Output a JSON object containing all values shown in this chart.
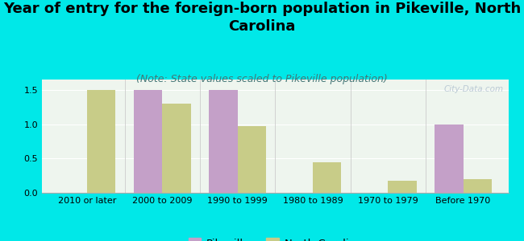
{
  "title": "Year of entry for the foreign-born population in Pikeville, North\nCarolina",
  "subtitle": "(Note: State values scaled to Pikeville population)",
  "categories": [
    "2010 or later",
    "2000 to 2009",
    "1990 to 1999",
    "1980 to 1989",
    "1970 to 1979",
    "Before 1970"
  ],
  "pikeville_values": [
    0,
    1.5,
    1.5,
    0,
    0,
    1.0
  ],
  "nc_values": [
    1.5,
    1.3,
    0.97,
    0.45,
    0.18,
    0.2
  ],
  "pikeville_color": "#c4a0c8",
  "nc_color": "#c8cc88",
  "background_color": "#00e8e8",
  "plot_bg_color": "#eef5ee",
  "ylim": [
    0,
    1.65
  ],
  "yticks": [
    0,
    0.5,
    1.0,
    1.5
  ],
  "bar_width": 0.38,
  "title_fontsize": 13,
  "subtitle_fontsize": 9,
  "tick_fontsize": 8,
  "legend_labels": [
    "Pikeville",
    "North Carolina"
  ],
  "watermark": "City-Data.com"
}
